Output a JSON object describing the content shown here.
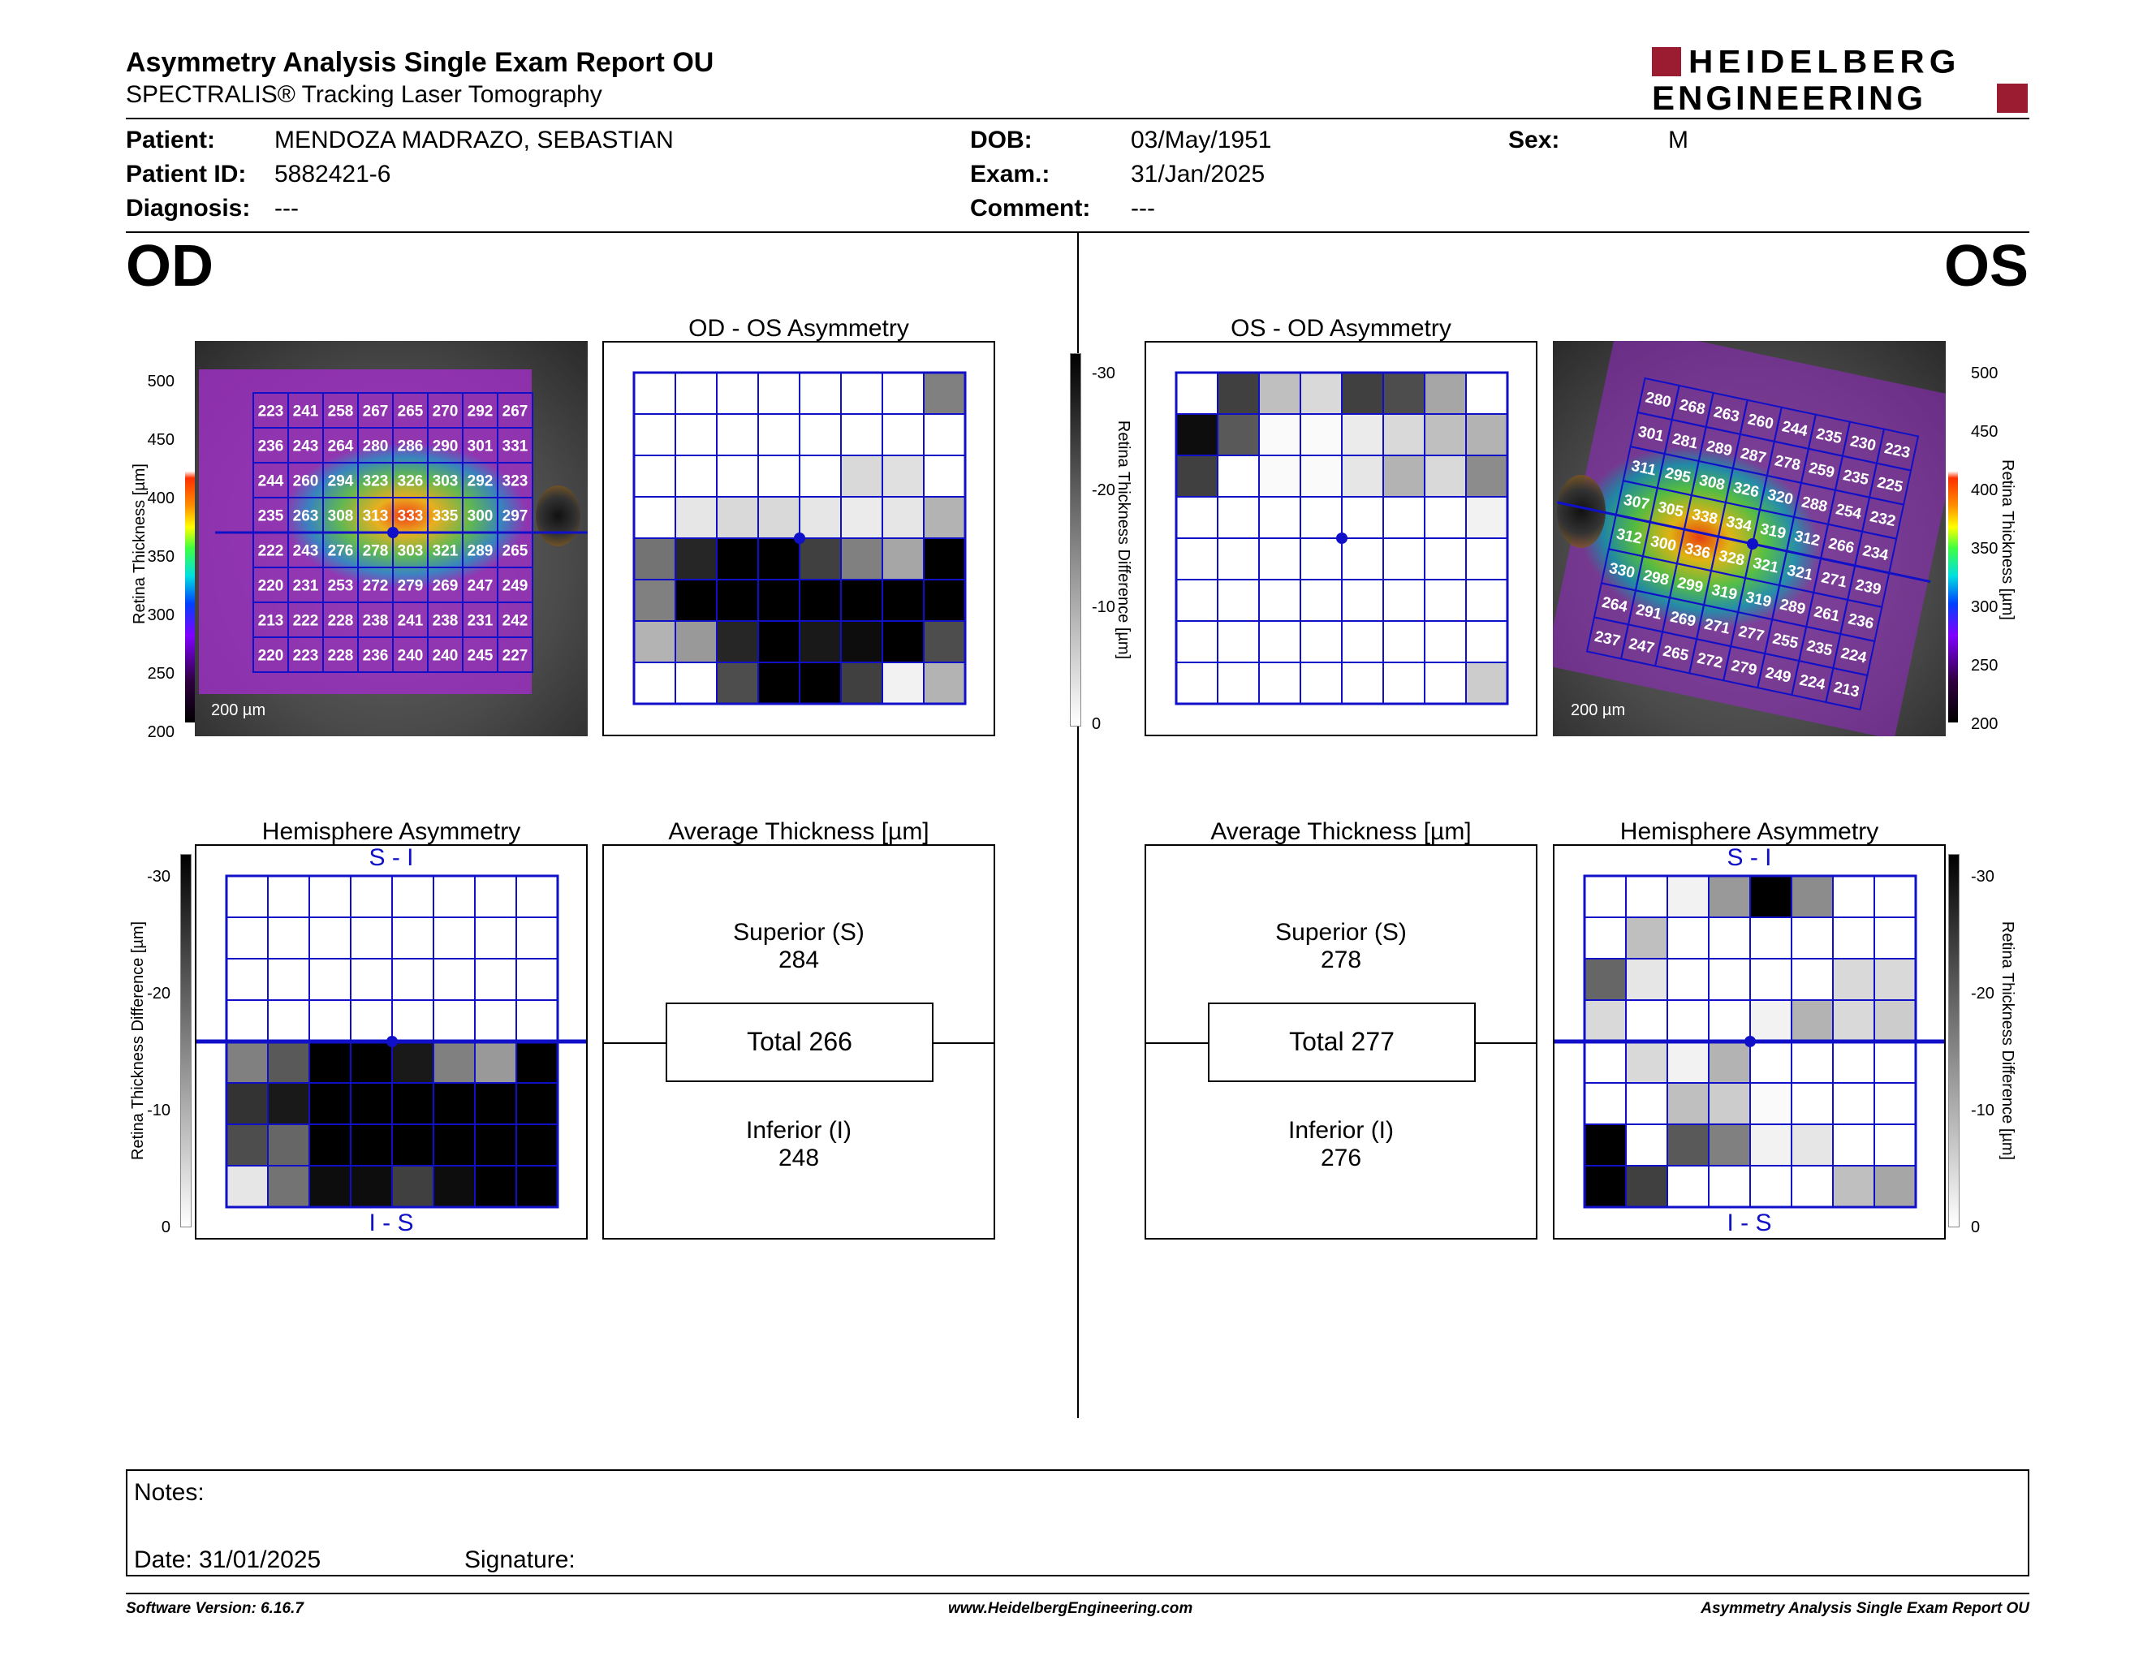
{
  "header": {
    "title": "Asymmetry Analysis Single Exam Report OU",
    "subtitle": "SPECTRALIS® Tracking Laser Tomography",
    "logo_line1": "HEIDELBERG",
    "logo_line2": "ENGINEERING",
    "logo_color": "#9b1b30"
  },
  "patient": {
    "patient_label": "Patient:",
    "patient_value": "MENDOZA MADRAZO, SEBASTIAN",
    "id_label": "Patient ID:",
    "id_value": "5882421-6",
    "diagnosis_label": "Diagnosis:",
    "diagnosis_value": "---",
    "dob_label": "DOB:",
    "dob_value": "03/May/1951",
    "exam_label": "Exam.:",
    "exam_value": "31/Jan/2025",
    "comment_label": "Comment:",
    "comment_value": "---",
    "sex_label": "Sex:",
    "sex_value": "M"
  },
  "od": {
    "eye_label": "OD",
    "thickness_map": {
      "axis_label": "Retina  Thickness [µm]",
      "ticks": [
        "500",
        "450",
        "400",
        "350",
        "300",
        "250",
        "200"
      ],
      "scale_label": "200 µm",
      "grid": [
        [
          223,
          241,
          258,
          267,
          265,
          270,
          292,
          267
        ],
        [
          236,
          243,
          264,
          280,
          286,
          290,
          301,
          331
        ],
        [
          244,
          260,
          294,
          323,
          326,
          303,
          292,
          323
        ],
        [
          235,
          263,
          308,
          313,
          333,
          335,
          300,
          297
        ],
        [
          222,
          243,
          276,
          278,
          303,
          321,
          289,
          265
        ],
        [
          220,
          231,
          253,
          272,
          279,
          269,
          247,
          249
        ],
        [
          213,
          222,
          228,
          238,
          241,
          238,
          231,
          242
        ],
        [
          220,
          223,
          228,
          236,
          240,
          240,
          245,
          227
        ]
      ]
    },
    "asymmetry": {
      "title": "OD - OS Asymmetry",
      "grid": [
        [
          0,
          0,
          0,
          0,
          0,
          0,
          0,
          0.5
        ],
        [
          0,
          0,
          0,
          0,
          0,
          0,
          0,
          0
        ],
        [
          0,
          0,
          0,
          0,
          0,
          0.15,
          0.12,
          0
        ],
        [
          0,
          0.1,
          0.15,
          0.15,
          0.1,
          0.08,
          0.1,
          0.3
        ],
        [
          0.55,
          0.85,
          1,
          1,
          0.75,
          0.5,
          0.35,
          1
        ],
        [
          0.5,
          1,
          1,
          1,
          1,
          1,
          1,
          1
        ],
        [
          0.3,
          0.4,
          0.85,
          1,
          0.9,
          0.95,
          1,
          0.7
        ],
        [
          0,
          0,
          0.7,
          1,
          1,
          0.75,
          0.05,
          0.3
        ]
      ]
    },
    "hemisphere": {
      "title": "Hemisphere Asymmetry",
      "top_label": "S - I",
      "bottom_label": "I - S",
      "axis_label": "Retina Thickness Difference [µm]",
      "ticks": [
        "-30",
        "-20",
        "-10",
        "0"
      ],
      "grid": [
        [
          0,
          0,
          0,
          0,
          0,
          0,
          0,
          0
        ],
        [
          0,
          0,
          0,
          0,
          0,
          0,
          0,
          0
        ],
        [
          0,
          0,
          0,
          0,
          0,
          0,
          0,
          0
        ],
        [
          0,
          0,
          0,
          0,
          0,
          0,
          0,
          0
        ],
        [
          0.5,
          0.65,
          1,
          1,
          0.9,
          0.5,
          0.4,
          1
        ],
        [
          0.8,
          0.9,
          1,
          1,
          1,
          1,
          1,
          1
        ],
        [
          0.7,
          0.6,
          1,
          1,
          1,
          1,
          1,
          1
        ],
        [
          0.1,
          0.55,
          0.95,
          0.95,
          0.75,
          0.95,
          1,
          1
        ]
      ]
    },
    "average": {
      "title": "Average Thickness [µm]",
      "superior_label": "Superior (S)",
      "superior_value": "284",
      "total_label": "Total 266",
      "inferior_label": "Inferior (I)",
      "inferior_value": "248"
    }
  },
  "os": {
    "eye_label": "OS",
    "thickness_map": {
      "axis_label": "Retina  Thickness [µm]",
      "ticks": [
        "500",
        "450",
        "400",
        "350",
        "300",
        "250",
        "200"
      ],
      "scale_label": "200 µm",
      "grid": [
        [
          280,
          268,
          263,
          260,
          244,
          235,
          230,
          223
        ],
        [
          301,
          281,
          289,
          287,
          278,
          259,
          235,
          225
        ],
        [
          311,
          295,
          308,
          326,
          320,
          288,
          254,
          232
        ],
        [
          307,
          305,
          338,
          334,
          319,
          312,
          266,
          234
        ],
        [
          312,
          300,
          336,
          328,
          321,
          321,
          271,
          239
        ],
        [
          330,
          298,
          299,
          319,
          319,
          289,
          261,
          236
        ],
        [
          264,
          291,
          269,
          271,
          277,
          255,
          235,
          224
        ],
        [
          237,
          247,
          265,
          272,
          279,
          249,
          224,
          213
        ]
      ]
    },
    "asymmetry": {
      "title": "OS - OD Asymmetry",
      "grid": [
        [
          0,
          0.75,
          0.25,
          0.15,
          0.75,
          0.7,
          0.35,
          0
        ],
        [
          0.95,
          0.65,
          0.02,
          0.02,
          0.08,
          0.15,
          0.25,
          0.3
        ],
        [
          0.75,
          0,
          0.02,
          0.02,
          0.1,
          0.3,
          0.15,
          0.45
        ],
        [
          0,
          0,
          0,
          0,
          0,
          0,
          0,
          0.05
        ],
        [
          0,
          0,
          0,
          0,
          0,
          0,
          0,
          0
        ],
        [
          0,
          0,
          0,
          0,
          0,
          0,
          0,
          0
        ],
        [
          0,
          0,
          0,
          0,
          0,
          0,
          0,
          0
        ],
        [
          0,
          0,
          0,
          0,
          0,
          0,
          0,
          0.2
        ]
      ]
    },
    "hemisphere": {
      "title": "Hemisphere Asymmetry",
      "top_label": "S - I",
      "bottom_label": "I - S",
      "axis_label": "Retina Thickness Difference [µm]",
      "ticks": [
        "-30",
        "-20",
        "-10",
        "0"
      ],
      "grid": [
        [
          0,
          0,
          0.05,
          0.4,
          1,
          0.45,
          0,
          0
        ],
        [
          0,
          0.25,
          0,
          0,
          0,
          0,
          0,
          0
        ],
        [
          0.6,
          0.1,
          0,
          0,
          0,
          0,
          0.15,
          0.15
        ],
        [
          0.15,
          0,
          0,
          0,
          0.05,
          0.3,
          0.15,
          0.2
        ],
        [
          0,
          0.15,
          0.05,
          0.3,
          0,
          0,
          0,
          0
        ],
        [
          0,
          0,
          0.25,
          0.2,
          0.02,
          0,
          0,
          0
        ],
        [
          1,
          0,
          0.65,
          0.5,
          0.05,
          0.1,
          0,
          0
        ],
        [
          1,
          0.75,
          0,
          0,
          0,
          0,
          0.25,
          0.35
        ]
      ]
    },
    "average": {
      "title": "Average Thickness [µm]",
      "superior_label": "Superior (S)",
      "superior_value": "278",
      "total_label": "Total 277",
      "inferior_label": "Inferior (I)",
      "inferior_value": "276"
    }
  },
  "diff_scale": {
    "axis_label": "Retina Thickness Difference [µm]",
    "ticks": [
      "-30",
      "-20",
      "-10",
      "0"
    ]
  },
  "notes": {
    "notes_label": "Notes:",
    "date_label": "Date: 31/01/2025",
    "signature_label": "Signature:"
  },
  "footer": {
    "version": "Software Version: 6.16.7",
    "url": "www.HeidelbergEngineering.com",
    "report": "Asymmetry Analysis Single Exam Report OU"
  }
}
